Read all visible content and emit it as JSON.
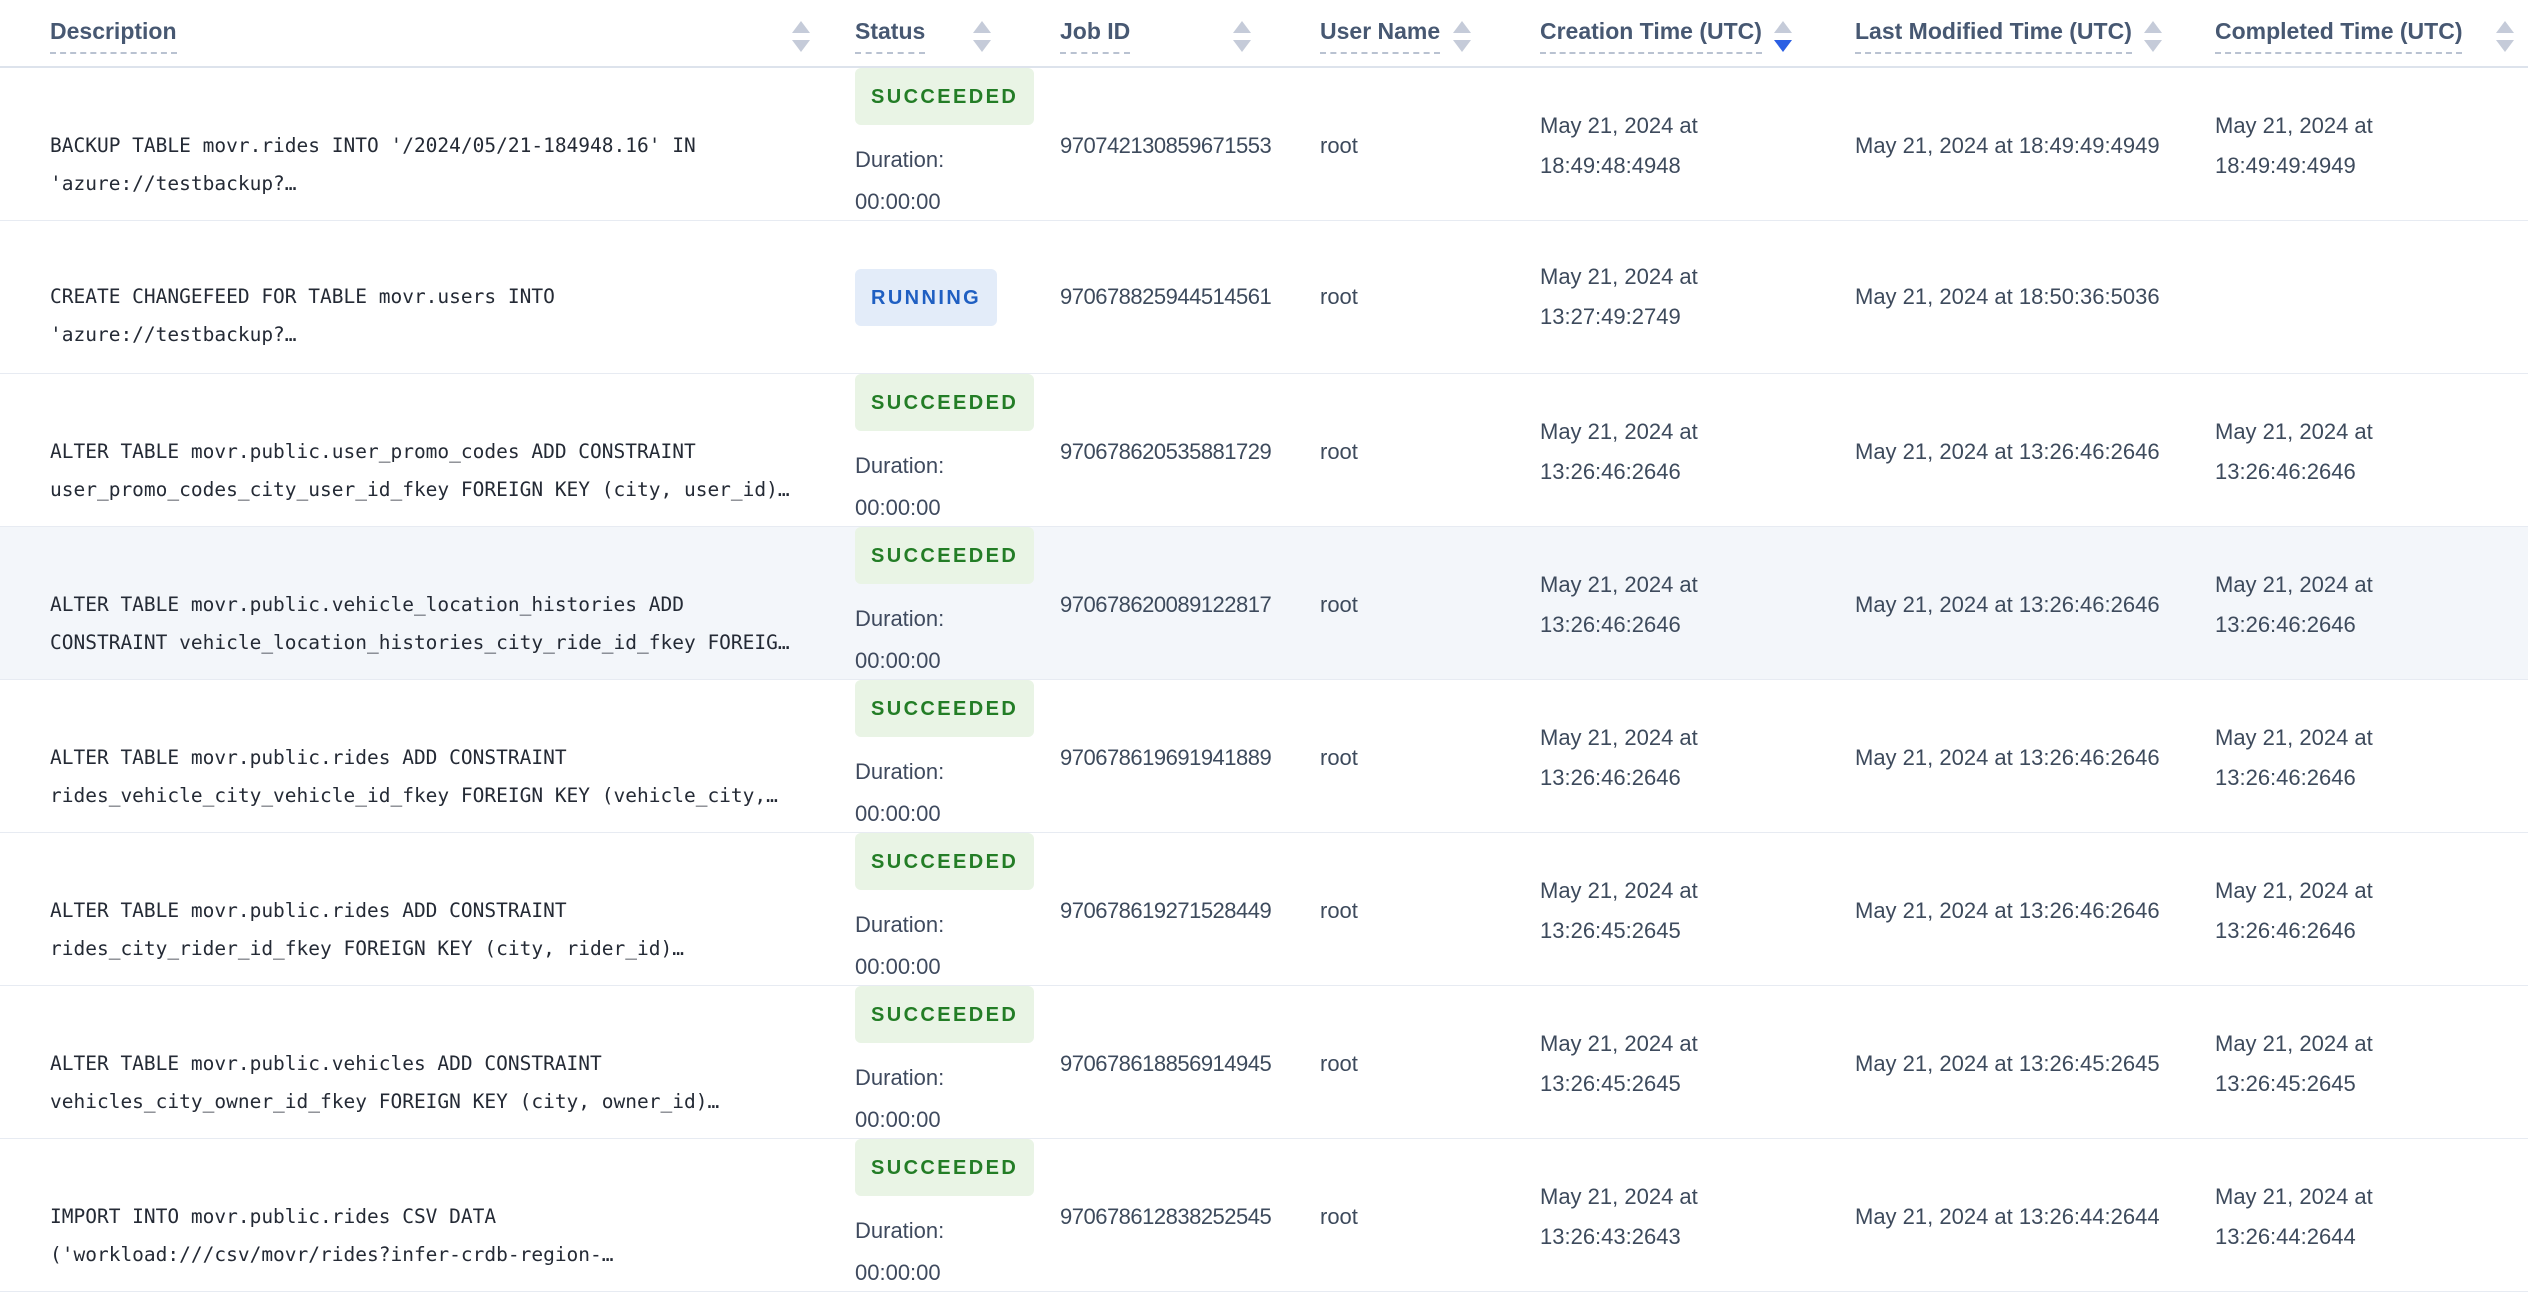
{
  "header": {
    "columns": [
      {
        "key": "description",
        "label": "Description",
        "sort": "none"
      },
      {
        "key": "status",
        "label": "Status",
        "sort": "none"
      },
      {
        "key": "job-id",
        "label": "Job ID",
        "sort": "none"
      },
      {
        "key": "user-name",
        "label": "User Name",
        "sort": "none"
      },
      {
        "key": "creation-time",
        "label": "Creation Time (UTC)",
        "sort": "desc"
      },
      {
        "key": "last-modified-time",
        "label": "Last Modified Time (UTC)",
        "sort": "none"
      },
      {
        "key": "completed-time",
        "label": "Completed Time (UTC)",
        "sort": "none"
      }
    ]
  },
  "status_labels": {
    "duration_label": "Duration:",
    "duration_value": "00:00:00"
  },
  "rows": [
    {
      "description": "BACKUP TABLE movr.rides INTO '/2024/05/21-184948.16' IN\n'azure://testbackup?…",
      "status": "SUCCEEDED",
      "status_kind": "succeeded",
      "show_duration": true,
      "job_id": "970742130859671553",
      "user_name": "root",
      "creation_time": "May 21, 2024 at 18:49:48:4948",
      "last_modified_time": "May 21, 2024 at 18:49:49:4949",
      "completed_time": "May 21, 2024 at 18:49:49:4949",
      "highlighted": false
    },
    {
      "description": "CREATE CHANGEFEED FOR TABLE movr.users INTO\n'azure://testbackup?…",
      "status": "RUNNING",
      "status_kind": "running",
      "show_duration": false,
      "job_id": "970678825944514561",
      "user_name": "root",
      "creation_time": "May 21, 2024 at 13:27:49:2749",
      "last_modified_time": "May 21, 2024 at 18:50:36:5036",
      "completed_time": "",
      "highlighted": false
    },
    {
      "description": "ALTER TABLE movr.public.user_promo_codes ADD CONSTRAINT\nuser_promo_codes_city_user_id_fkey FOREIGN KEY (city, user_id)…",
      "status": "SUCCEEDED",
      "status_kind": "succeeded",
      "show_duration": true,
      "job_id": "970678620535881729",
      "user_name": "root",
      "creation_time": "May 21, 2024 at 13:26:46:2646",
      "last_modified_time": "May 21, 2024 at 13:26:46:2646",
      "completed_time": "May 21, 2024 at 13:26:46:2646",
      "highlighted": false
    },
    {
      "description": "ALTER TABLE movr.public.vehicle_location_histories ADD\nCONSTRAINT vehicle_location_histories_city_ride_id_fkey FOREIG…",
      "status": "SUCCEEDED",
      "status_kind": "succeeded",
      "show_duration": true,
      "job_id": "970678620089122817",
      "user_name": "root",
      "creation_time": "May 21, 2024 at 13:26:46:2646",
      "last_modified_time": "May 21, 2024 at 13:26:46:2646",
      "completed_time": "May 21, 2024 at 13:26:46:2646",
      "highlighted": true
    },
    {
      "description": "ALTER TABLE movr.public.rides ADD CONSTRAINT\nrides_vehicle_city_vehicle_id_fkey FOREIGN KEY (vehicle_city,…",
      "status": "SUCCEEDED",
      "status_kind": "succeeded",
      "show_duration": true,
      "job_id": "970678619691941889",
      "user_name": "root",
      "creation_time": "May 21, 2024 at 13:26:46:2646",
      "last_modified_time": "May 21, 2024 at 13:26:46:2646",
      "completed_time": "May 21, 2024 at 13:26:46:2646",
      "highlighted": false
    },
    {
      "description": "ALTER TABLE movr.public.rides ADD CONSTRAINT\nrides_city_rider_id_fkey FOREIGN KEY (city, rider_id)…",
      "status": "SUCCEEDED",
      "status_kind": "succeeded",
      "show_duration": true,
      "job_id": "970678619271528449",
      "user_name": "root",
      "creation_time": "May 21, 2024 at 13:26:45:2645",
      "last_modified_time": "May 21, 2024 at 13:26:46:2646",
      "completed_time": "May 21, 2024 at 13:26:46:2646",
      "highlighted": false
    },
    {
      "description": "ALTER TABLE movr.public.vehicles ADD CONSTRAINT\nvehicles_city_owner_id_fkey FOREIGN KEY (city, owner_id)…",
      "status": "SUCCEEDED",
      "status_kind": "succeeded",
      "show_duration": true,
      "job_id": "970678618856914945",
      "user_name": "root",
      "creation_time": "May 21, 2024 at 13:26:45:2645",
      "last_modified_time": "May 21, 2024 at 13:26:45:2645",
      "completed_time": "May 21, 2024 at 13:26:45:2645",
      "highlighted": false
    },
    {
      "description": "IMPORT INTO movr.public.rides CSV DATA\n('workload:///csv/movr/rides?infer-crdb-region-…",
      "status": "SUCCEEDED",
      "status_kind": "succeeded",
      "show_duration": true,
      "job_id": "970678612838252545",
      "user_name": "root",
      "creation_time": "May 21, 2024 at 13:26:43:2643",
      "last_modified_time": "May 21, 2024 at 13:26:44:2644",
      "completed_time": "May 21, 2024 at 13:26:44:2644",
      "highlighted": false
    }
  ],
  "colors": {
    "succeeded_text": "#237d26",
    "succeeded_bg": "#e9f4e5",
    "running_text": "#1f5fc2",
    "running_bg": "#e3ecf9",
    "sort_active": "#2b5fe3",
    "highlighted_row_bg": "#f3f6fa",
    "header_text": "#475872"
  }
}
